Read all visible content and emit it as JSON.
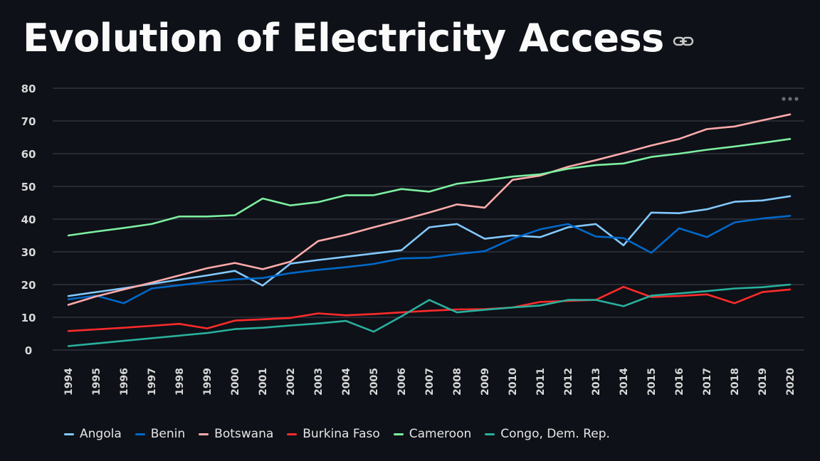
{
  "page": {
    "title": "Evolution of Electricity Access",
    "link_icon": "link-icon",
    "menu_icon": "more-horizontal-icon"
  },
  "chart_data": {
    "type": "line",
    "title": "",
    "xlabel": "",
    "ylabel": "",
    "ylim": [
      0,
      80
    ],
    "yticks": [
      0,
      10,
      20,
      30,
      40,
      50,
      60,
      70,
      80
    ],
    "grid": true,
    "legend_position": "bottom-left",
    "x": [
      "1994",
      "1995",
      "1996",
      "1997",
      "1998",
      "1999",
      "2000",
      "2001",
      "2002",
      "2003",
      "2004",
      "2005",
      "2006",
      "2007",
      "2008",
      "2009",
      "2010",
      "2011",
      "2012",
      "2013",
      "2014",
      "2015",
      "2016",
      "2017",
      "2018",
      "2019",
      "2020"
    ],
    "series": [
      {
        "name": "Angola",
        "color": "#83c9ff",
        "values": [
          16.5,
          17.7,
          18.9,
          20.2,
          21.5,
          22.8,
          24.2,
          19.7,
          26.4,
          27.5,
          28.5,
          29.5,
          30.5,
          37.5,
          38.5,
          34.0,
          35.0,
          34.5,
          37.5,
          38.5,
          32.0,
          42.0,
          41.8,
          43.0,
          45.3,
          45.7,
          47.0
        ]
      },
      {
        "name": "Benin",
        "color": "#0068c9",
        "values": [
          15.5,
          16.6,
          14.3,
          18.8,
          19.8,
          20.8,
          21.6,
          22.0,
          23.5,
          24.5,
          25.3,
          26.3,
          28.0,
          28.2,
          29.3,
          30.2,
          34.0,
          36.9,
          38.5,
          34.7,
          34.2,
          29.7,
          37.2,
          34.5,
          39.0,
          40.2,
          41.0
        ]
      },
      {
        "name": "Botswana",
        "color": "#ffabab",
        "values": [
          13.8,
          16.4,
          18.5,
          20.6,
          22.8,
          25.0,
          26.6,
          24.7,
          27.0,
          33.3,
          35.2,
          37.5,
          39.7,
          42.0,
          44.5,
          43.5,
          52.0,
          53.3,
          56.0,
          58.0,
          60.2,
          62.5,
          64.5,
          67.5,
          68.3,
          70.2,
          72.0
        ]
      },
      {
        "name": "Burkina Faso",
        "color": "#ff2b2b",
        "values": [
          5.8,
          6.3,
          6.8,
          7.4,
          8.0,
          6.6,
          9.0,
          9.4,
          9.8,
          11.2,
          10.6,
          11.0,
          11.5,
          12.0,
          12.4,
          12.5,
          13.0,
          14.7,
          15.0,
          15.3,
          19.3,
          16.2,
          16.5,
          17.0,
          14.3,
          17.7,
          18.5
        ]
      },
      {
        "name": "Cameroon",
        "color": "#7defa1",
        "values": [
          35.0,
          36.2,
          37.3,
          38.5,
          40.8,
          40.8,
          41.2,
          46.3,
          44.2,
          45.2,
          47.3,
          47.3,
          49.2,
          48.4,
          50.8,
          51.8,
          53.0,
          53.7,
          55.4,
          56.5,
          57.0,
          59.0,
          60.0,
          61.2,
          62.2,
          63.3,
          64.5
        ]
      },
      {
        "name": "Congo, Dem. Rep.",
        "color": "#29b09d",
        "values": [
          1.2,
          2.0,
          2.8,
          3.6,
          4.4,
          5.2,
          6.4,
          6.8,
          7.5,
          8.1,
          8.9,
          5.6,
          10.3,
          15.3,
          11.5,
          12.3,
          13.0,
          13.6,
          15.3,
          15.3,
          13.4,
          16.6,
          17.3,
          18.0,
          18.8,
          19.2,
          20.0
        ]
      }
    ]
  }
}
